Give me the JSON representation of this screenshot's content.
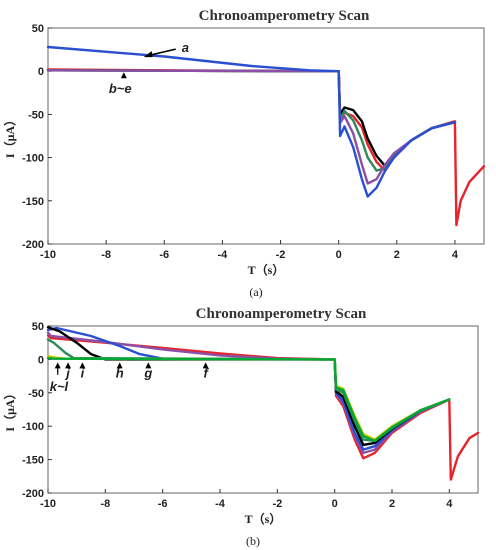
{
  "chart_data": [
    {
      "type": "line",
      "title": "Chronoamperometry Scan",
      "xlabel": "T（s）",
      "ylabel": "I（μA）",
      "caption": "(a)",
      "xlim": [
        -10,
        5
      ],
      "ylim": [
        -200,
        50
      ],
      "x_ticks": [
        "-10",
        "-8",
        "-6",
        "-4",
        "-2",
        "0",
        "2",
        "4"
      ],
      "y_ticks": [
        "50",
        "0",
        "-50",
        "-100",
        "-150",
        "-200"
      ],
      "grid": false,
      "annotations": [
        {
          "label": "a",
          "at": [
            -5.4,
            29
          ]
        },
        {
          "label": "b~e",
          "at": [
            -7.7,
            -18
          ]
        }
      ],
      "series": [
        {
          "color": "#e8232a",
          "x": [
            -10,
            -1,
            0,
            0.05,
            0.2,
            0.5,
            0.8,
            1.0,
            1.3,
            1.6,
            1.9,
            2.5,
            3.2,
            4.0,
            4.05,
            4.2,
            4.5,
            5.0
          ],
          "y": [
            2,
            0,
            0,
            -55,
            -48,
            -52,
            -65,
            -85,
            -105,
            -115,
            -100,
            -80,
            -66,
            -58,
            -178,
            -150,
            -128,
            -110
          ]
        },
        {
          "color": "#000000",
          "x": [
            -10,
            -1,
            0,
            0.05,
            0.2,
            0.5,
            0.8,
            1.0,
            1.3,
            1.6,
            1.9,
            2.5,
            3.2,
            4.0
          ],
          "y": [
            1,
            0,
            0,
            -50,
            -42,
            -45,
            -58,
            -78,
            -98,
            -110,
            -98,
            -80,
            -66,
            -59
          ]
        },
        {
          "color": "#2e8b57",
          "x": [
            -10,
            -1,
            0,
            0.05,
            0.2,
            0.5,
            0.8,
            1.0,
            1.3,
            1.6,
            1.9,
            2.5,
            3.2,
            4.0
          ],
          "y": [
            1,
            0,
            0,
            -56,
            -46,
            -57,
            -80,
            -100,
            -115,
            -112,
            -98,
            -80,
            -66,
            -59
          ]
        },
        {
          "color": "#8b4fa8",
          "x": [
            -10,
            -1,
            0,
            0.05,
            0.2,
            0.5,
            0.8,
            1.0,
            1.3,
            1.6,
            1.9,
            2.5,
            3.2,
            4.0
          ],
          "y": [
            1,
            0,
            0,
            -60,
            -52,
            -72,
            -108,
            -130,
            -125,
            -108,
            -95,
            -80,
            -66,
            -59
          ]
        },
        {
          "color": "#2a4fd0",
          "x": [
            -10,
            -6,
            -3,
            -1,
            0,
            0.05,
            0.2,
            0.5,
            0.8,
            1.0,
            1.3,
            1.6,
            1.9,
            2.5,
            3.2,
            4.0
          ],
          "y": [
            28,
            17,
            6,
            1,
            0,
            -75,
            -64,
            -88,
            -125,
            -145,
            -135,
            -115,
            -100,
            -80,
            -66,
            -59
          ]
        }
      ]
    },
    {
      "type": "line",
      "title": "Chronoamperometry Scan",
      "xlabel": "T（s）",
      "ylabel": "I（μA）",
      "caption": "(b)",
      "xlim": [
        -10,
        5
      ],
      "ylim": [
        -200,
        50
      ],
      "x_ticks": [
        "-10",
        "-8",
        "-6",
        "-4",
        "-2",
        "0",
        "2",
        "4"
      ],
      "y_ticks": [
        "50",
        "0",
        "-50",
        "-100",
        "-150",
        "-200"
      ],
      "grid": false,
      "annotations": [
        {
          "label": "k~l",
          "at": [
            -9.8,
            -38
          ]
        },
        {
          "label": "j",
          "at": [
            -9.3,
            -18
          ]
        },
        {
          "label": "i",
          "at": [
            -8.8,
            -18
          ]
        },
        {
          "label": "h",
          "at": [
            -7.5,
            -18
          ]
        },
        {
          "label": "g",
          "at": [
            -6.5,
            -18
          ]
        },
        {
          "label": "f",
          "at": [
            -4.5,
            -18
          ]
        }
      ],
      "series": [
        {
          "color": "#e8232a",
          "x": [
            -10,
            -9.9,
            -8,
            -6,
            -4,
            -2,
            0,
            0.05,
            0.3,
            0.7,
            1.0,
            1.4,
            2.0,
            3.0,
            4.0,
            4.05,
            4.3,
            4.7,
            5.0
          ],
          "y": [
            36,
            32,
            25,
            17,
            9,
            2,
            0,
            -55,
            -70,
            -120,
            -148,
            -140,
            -110,
            -80,
            -60,
            -180,
            -145,
            -118,
            -110
          ]
        },
        {
          "color": "#8b4fa8",
          "x": [
            -10,
            -9.9,
            -8,
            -6,
            -4,
            -2,
            0,
            0.05,
            0.3,
            0.7,
            1.0,
            1.4,
            2.0,
            3.0,
            4.0
          ],
          "y": [
            40,
            35,
            26,
            15,
            6,
            1,
            0,
            -52,
            -66,
            -115,
            -140,
            -135,
            -108,
            -78,
            -60
          ]
        },
        {
          "color": "#2a4fd0",
          "x": [
            -10,
            -9.7,
            -8.5,
            -7.5,
            -6.8,
            -6,
            0,
            0.05,
            0.3,
            0.7,
            1.0,
            1.4,
            2.0,
            3.0,
            4.0
          ],
          "y": [
            44,
            47,
            35,
            20,
            8,
            1,
            0,
            -50,
            -62,
            -110,
            -135,
            -130,
            -106,
            -77,
            -60
          ]
        },
        {
          "color": "#000000",
          "x": [
            -10,
            -9.6,
            -9.0,
            -8.5,
            -8.0,
            0,
            0.05,
            0.3,
            0.7,
            1.0,
            1.4,
            2.0,
            3.0,
            4.0
          ],
          "y": [
            48,
            42,
            25,
            8,
            0,
            0,
            -48,
            -56,
            -100,
            -128,
            -125,
            -104,
            -76,
            -60
          ]
        },
        {
          "color": "#2e8b57",
          "x": [
            -10,
            -9.8,
            -9.4,
            -9.1,
            0,
            0.05,
            0.3,
            0.7,
            1.0,
            1.4,
            2.0,
            3.0,
            4.0
          ],
          "y": [
            30,
            25,
            10,
            2,
            0,
            -45,
            -50,
            -92,
            -120,
            -122,
            -103,
            -76,
            -60
          ]
        },
        {
          "color": "#c8c800",
          "x": [
            -10,
            -9.8,
            -9.4,
            0,
            0.05,
            0.3,
            0.7,
            1.0,
            1.4,
            2.0,
            3.0,
            4.0
          ],
          "y": [
            5,
            3,
            1,
            0,
            -40,
            -44,
            -85,
            -112,
            -120,
            -100,
            -76,
            -60
          ]
        },
        {
          "color": "#00a836",
          "x": [
            -10,
            -9.8,
            0,
            0.05,
            0.3,
            0.7,
            1.0,
            1.4,
            2.0,
            3.0,
            4.0
          ],
          "y": [
            2,
            1,
            0,
            -42,
            -46,
            -88,
            -115,
            -122,
            -102,
            -76,
            -60
          ]
        }
      ]
    }
  ]
}
